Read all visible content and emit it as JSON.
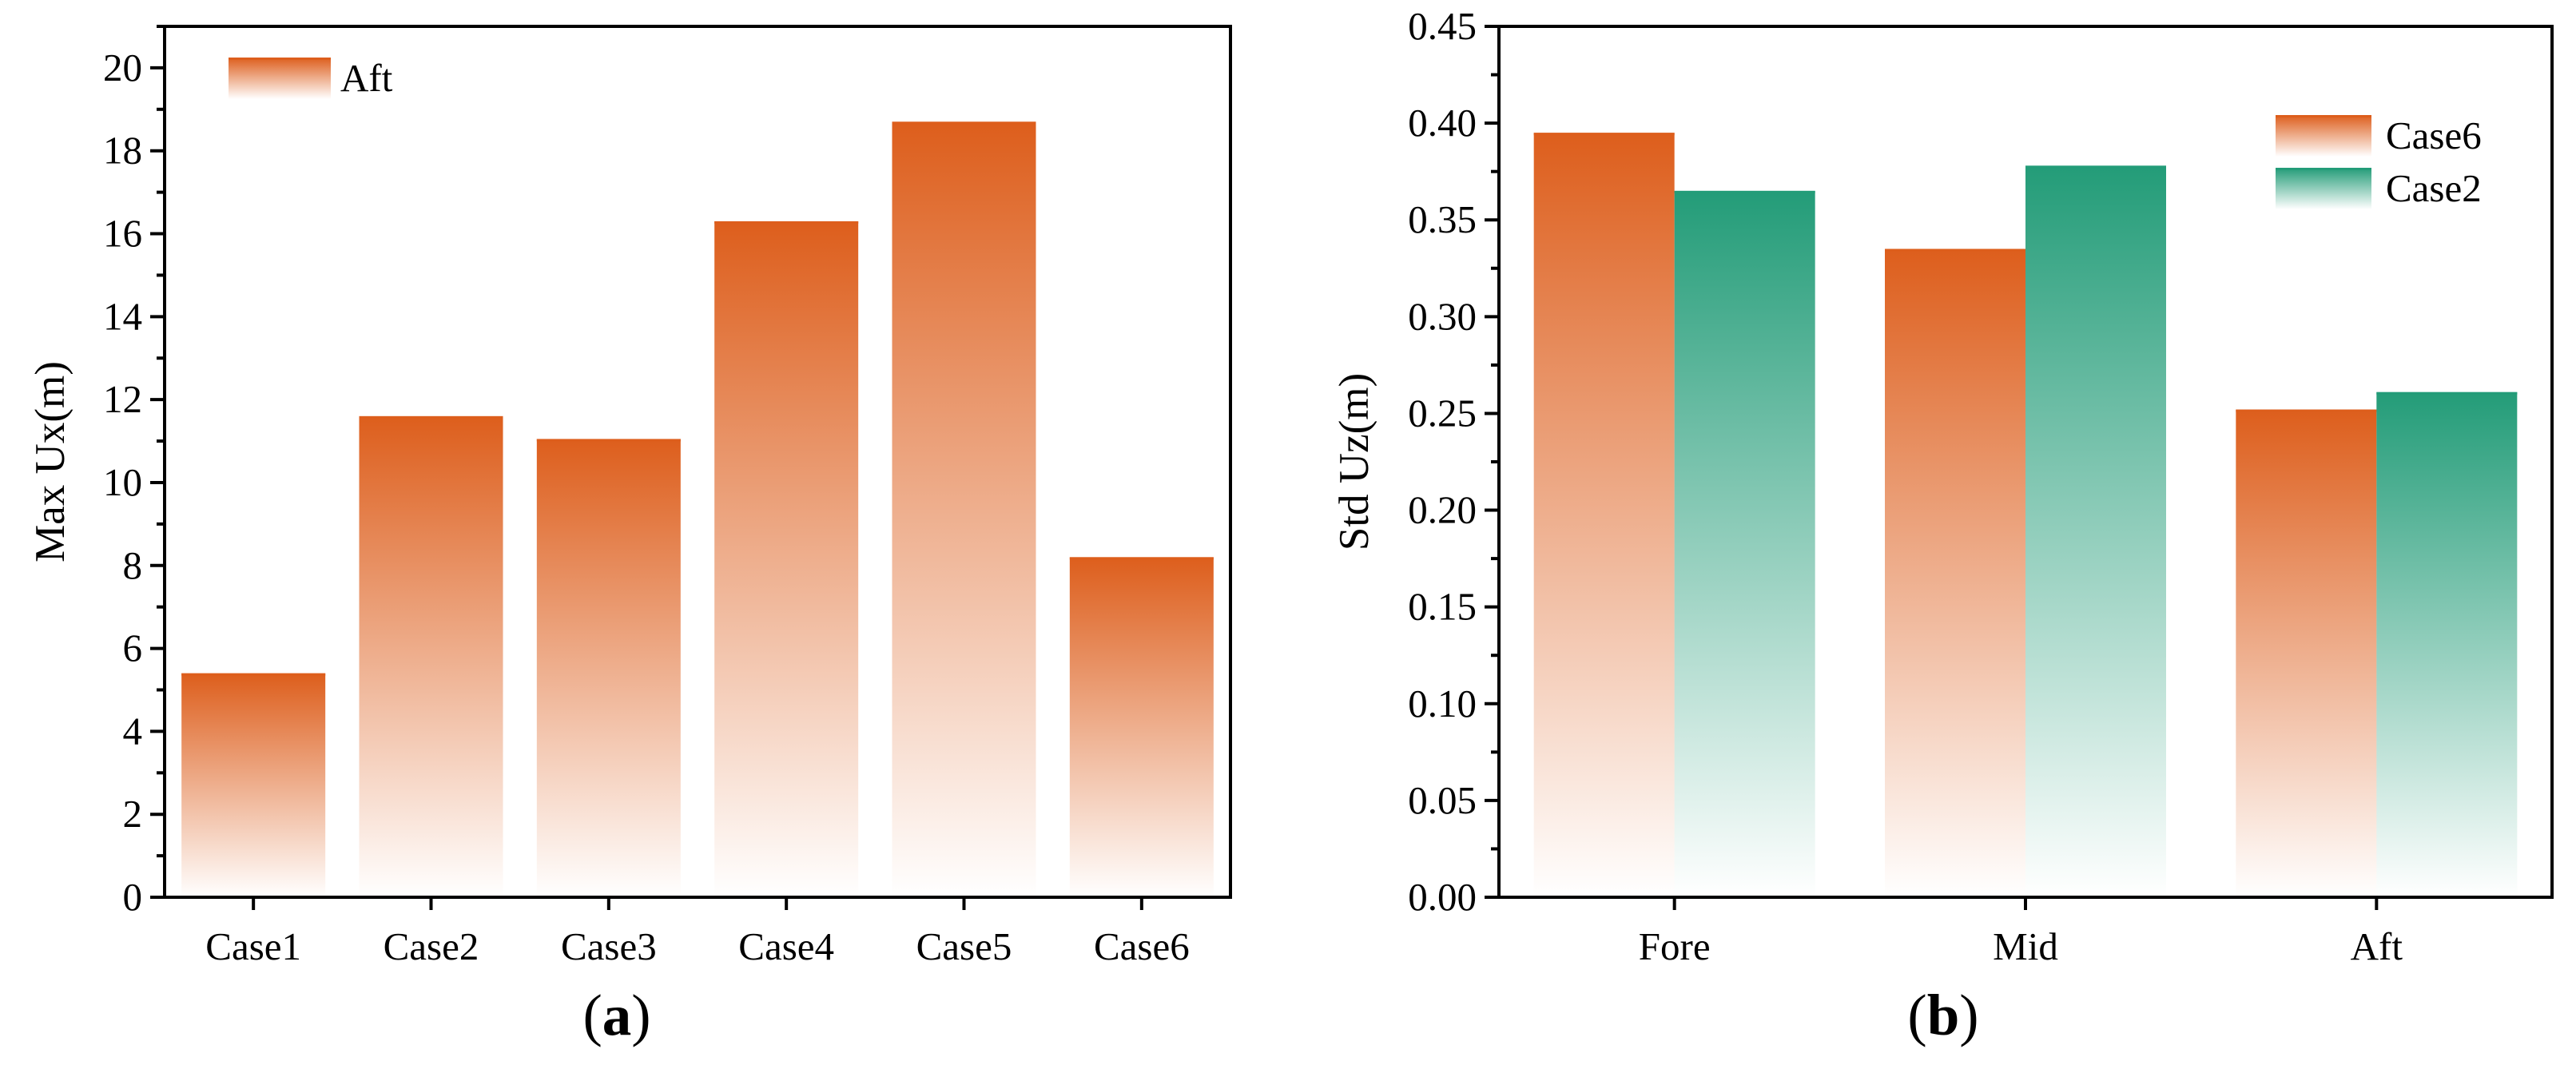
{
  "chart_data": [
    {
      "type": "bar",
      "panel_label": {
        "prefix": "(",
        "letter": "a",
        "suffix": ")"
      },
      "ylabel": "Max Ux(m)",
      "xlabel": "",
      "ylim": [
        0,
        21
      ],
      "yticks": [
        0,
        2,
        4,
        6,
        8,
        10,
        12,
        14,
        16,
        18,
        20
      ],
      "ytick_labels": [
        "0",
        "2",
        "4",
        "6",
        "8",
        "10",
        "12",
        "14",
        "16",
        "18",
        "20"
      ],
      "categories": [
        "Case1",
        "Case2",
        "Case3",
        "Case4",
        "Case5",
        "Case6"
      ],
      "series": [
        {
          "name": "Aft",
          "color": "#dd5e1c",
          "values": [
            5.4,
            11.6,
            11.05,
            16.3,
            18.7,
            8.2
          ]
        }
      ],
      "legend_position": "top-left"
    },
    {
      "type": "bar",
      "panel_label": {
        "prefix": "(",
        "letter": "b",
        "suffix": ")"
      },
      "ylabel": "Std Uz(m)",
      "xlabel": "",
      "ylim": [
        0,
        0.45
      ],
      "yticks": [
        0,
        0.05,
        0.1,
        0.15,
        0.2,
        0.25,
        0.3,
        0.35,
        0.4,
        0.45
      ],
      "ytick_labels": [
        "0.00",
        "0.05",
        "0.10",
        "0.15",
        "0.20",
        "0.25",
        "0.30",
        "0.35",
        "0.40",
        "0.45"
      ],
      "categories": [
        "Fore",
        "Mid",
        "Aft"
      ],
      "series": [
        {
          "name": "Case6",
          "color": "#dd5e1c",
          "values": [
            0.395,
            0.335,
            0.252
          ]
        },
        {
          "name": "Case2",
          "color": "#239c78",
          "values": [
            0.365,
            0.378,
            0.261
          ]
        }
      ],
      "legend_position": "top-right"
    }
  ]
}
